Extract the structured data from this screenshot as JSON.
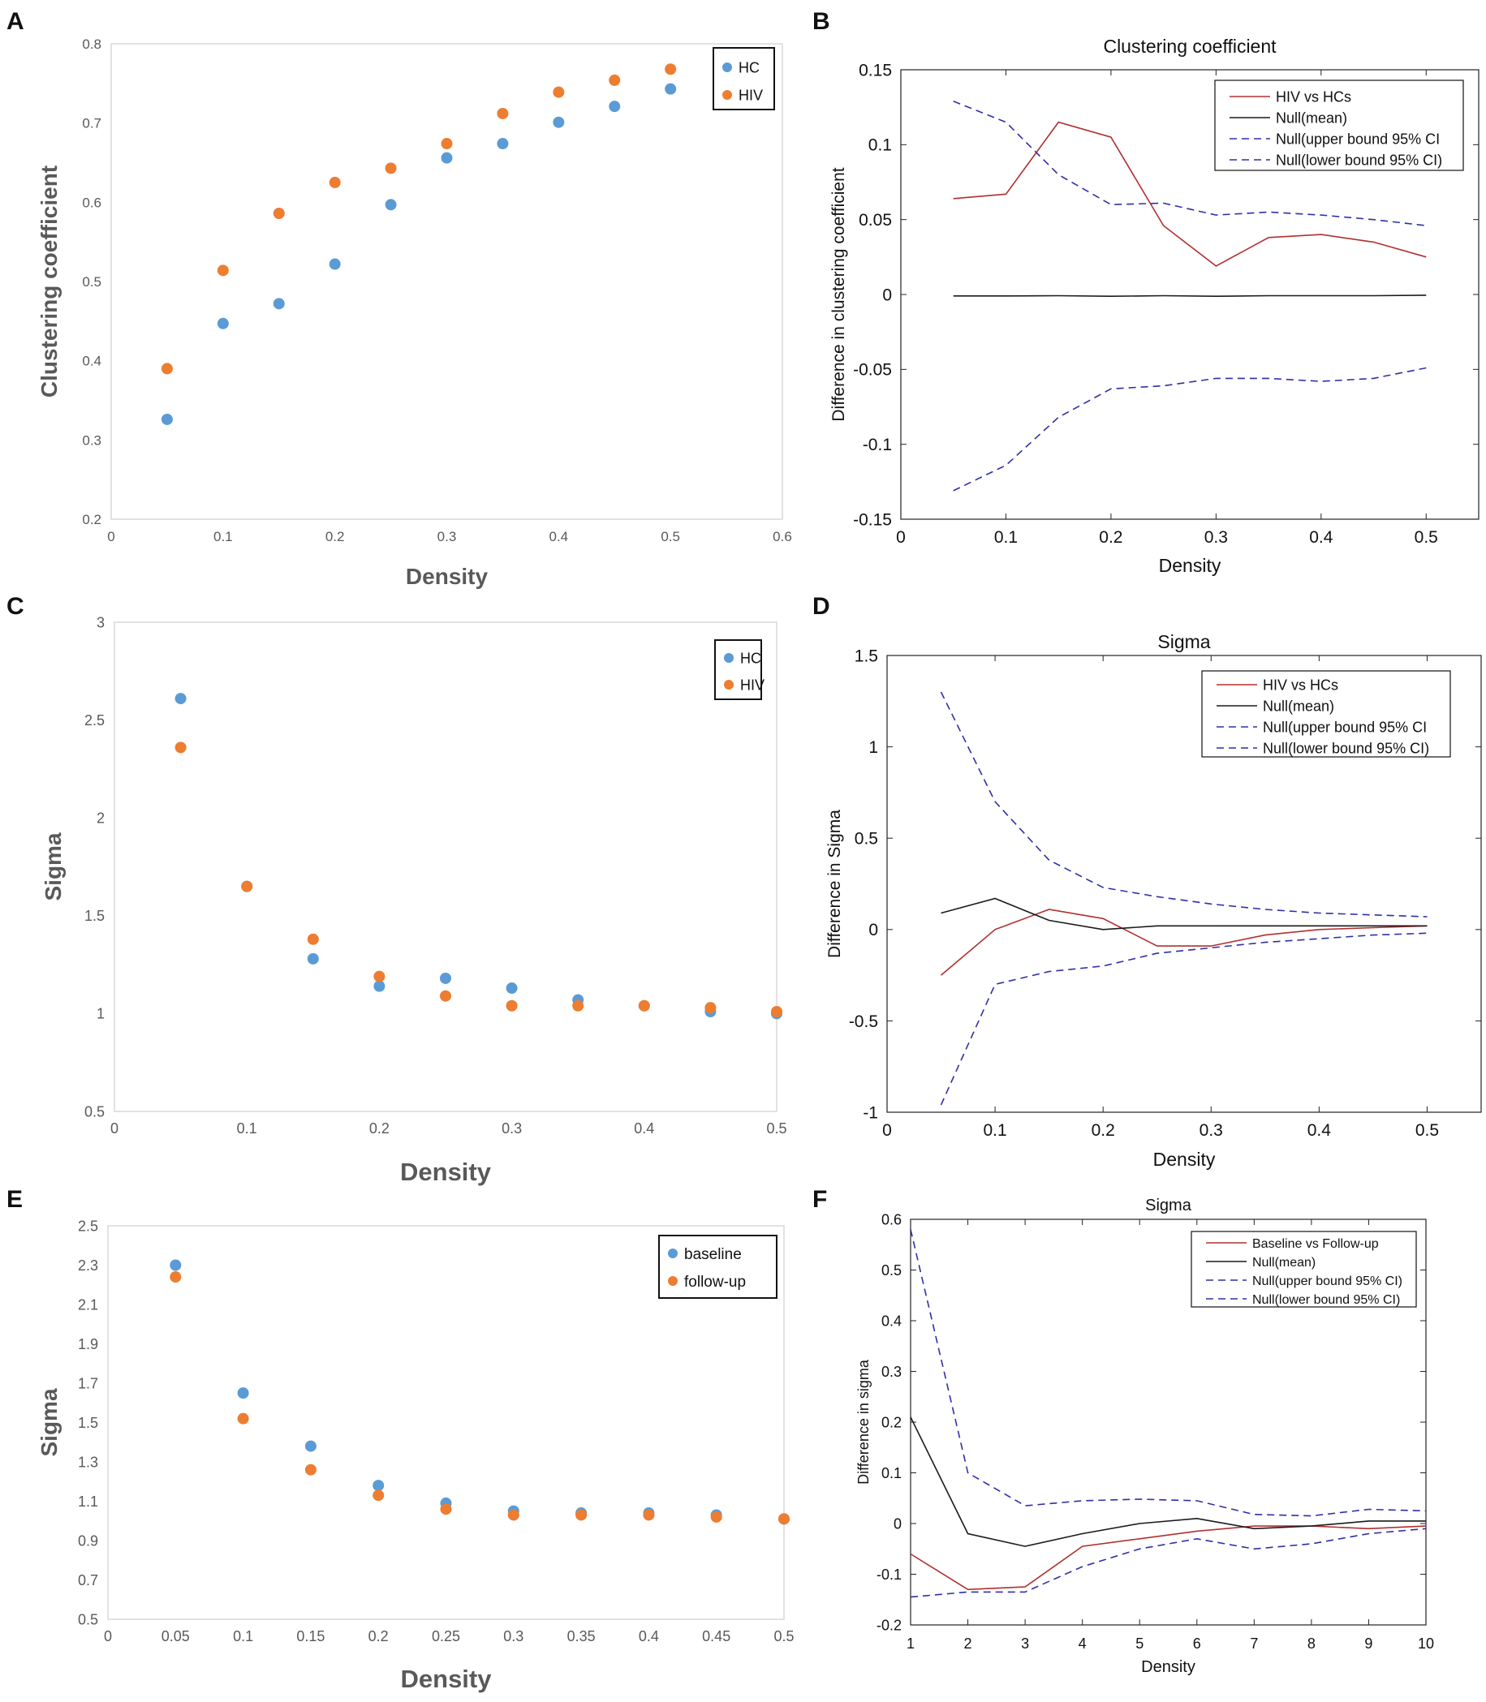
{
  "chart_data": [
    {
      "panel": "A",
      "type": "scatter",
      "title": "",
      "xlabel": "Density",
      "ylabel": "Clustering coefficient",
      "xlim": [
        0,
        0.6
      ],
      "ylim": [
        0.2,
        0.8
      ],
      "xticks": [
        0,
        0.1,
        0.2,
        0.3,
        0.4,
        0.5,
        0.6
      ],
      "xticklabels": [
        "0",
        "0.1",
        "0.2",
        "0.3",
        "0.4",
        "0.5",
        "0.6"
      ],
      "yticks": [
        0.2,
        0.3,
        0.4,
        0.5,
        0.6,
        0.7,
        0.8
      ],
      "yticklabels": [
        "0.2",
        "0.3",
        "0.4",
        "0.5",
        "0.6",
        "0.7",
        "0.8"
      ],
      "legend": "top-right",
      "series": [
        {
          "name": "HC",
          "color": "#5b9bd5",
          "x": [
            0.05,
            0.1,
            0.15,
            0.2,
            0.25,
            0.3,
            0.35,
            0.4,
            0.45,
            0.5
          ],
          "y": [
            0.326,
            0.447,
            0.472,
            0.522,
            0.597,
            0.656,
            0.674,
            0.701,
            0.721,
            0.743
          ]
        },
        {
          "name": "HIV",
          "color": "#ed7d31",
          "x": [
            0.05,
            0.1,
            0.15,
            0.2,
            0.25,
            0.3,
            0.35,
            0.4,
            0.45,
            0.5
          ],
          "y": [
            0.39,
            0.514,
            0.586,
            0.625,
            0.643,
            0.674,
            0.712,
            0.739,
            0.754,
            0.768
          ]
        }
      ]
    },
    {
      "panel": "B",
      "type": "line",
      "title": "Clustering coefficient",
      "xlabel": "Density",
      "ylabel": "Difference in clustering coefficient",
      "xlim": [
        0,
        0.55
      ],
      "ylim": [
        -0.15,
        0.15
      ],
      "xticks": [
        0,
        0.1,
        0.2,
        0.3,
        0.4,
        0.5
      ],
      "xticklabels": [
        "0",
        "0.1",
        "0.2",
        "0.3",
        "0.4",
        "0.5"
      ],
      "yticks": [
        -0.15,
        -0.1,
        -0.05,
        0,
        0.05,
        0.1,
        0.15
      ],
      "yticklabels": [
        "-0.15",
        "-0.1",
        "-0.05",
        "0",
        "0.05",
        "0.1",
        "0.15"
      ],
      "legend": "top-right",
      "series": [
        {
          "name": "HIV vs HCs",
          "color": "#b03030",
          "dash": false,
          "x": [
            0.05,
            0.1,
            0.15,
            0.2,
            0.25,
            0.3,
            0.35,
            0.4,
            0.45,
            0.5
          ],
          "y": [
            0.064,
            0.067,
            0.115,
            0.105,
            0.046,
            0.019,
            0.038,
            0.04,
            0.035,
            0.025
          ]
        },
        {
          "name": "Null(mean)",
          "color": "#1a1a1a",
          "dash": false,
          "x": [
            0.05,
            0.1,
            0.15,
            0.2,
            0.25,
            0.3,
            0.35,
            0.4,
            0.45,
            0.5
          ],
          "y": [
            -0.001,
            -0.001,
            -0.0008,
            -0.0012,
            -0.0008,
            -0.0012,
            -0.0008,
            -0.0008,
            -0.0008,
            -0.0005
          ]
        },
        {
          "name": "Null(upper bound 95% CI",
          "color": "#2f2fa8",
          "dash": true,
          "x": [
            0.05,
            0.1,
            0.15,
            0.2,
            0.25,
            0.3,
            0.35,
            0.4,
            0.45,
            0.5
          ],
          "y": [
            0.129,
            0.115,
            0.08,
            0.06,
            0.061,
            0.053,
            0.055,
            0.053,
            0.05,
            0.046
          ]
        },
        {
          "name": "Null(lower bound 95% CI)",
          "color": "#2f2fa8",
          "dash": true,
          "x": [
            0.05,
            0.1,
            0.15,
            0.2,
            0.25,
            0.3,
            0.35,
            0.4,
            0.45,
            0.5
          ],
          "y": [
            -0.131,
            -0.114,
            -0.082,
            -0.063,
            -0.061,
            -0.056,
            -0.056,
            -0.058,
            -0.056,
            -0.049
          ]
        }
      ]
    },
    {
      "panel": "C",
      "type": "scatter",
      "title": "",
      "xlabel": "Density",
      "ylabel": "Sigma",
      "xlim": [
        0,
        0.5
      ],
      "ylim": [
        0.5,
        3
      ],
      "xticks": [
        0,
        0.1,
        0.2,
        0.3,
        0.4,
        0.5
      ],
      "xticklabels": [
        "0",
        "0.1",
        "0.2",
        "0.3",
        "0.4",
        "0.5"
      ],
      "yticks": [
        0.5,
        1,
        1.5,
        2,
        2.5,
        3
      ],
      "yticklabels": [
        "0.5",
        "1",
        "1.5",
        "2",
        "2.5",
        "3"
      ],
      "legend": "top-right",
      "series": [
        {
          "name": "HC",
          "color": "#5b9bd5",
          "x": [
            0.05,
            0.1,
            0.15,
            0.2,
            0.25,
            0.3,
            0.35,
            0.4,
            0.45,
            0.5
          ],
          "y": [
            2.61,
            1.65,
            1.28,
            1.14,
            1.18,
            1.13,
            1.07,
            1.04,
            1.01,
            1.0
          ]
        },
        {
          "name": "HIV",
          "color": "#ed7d31",
          "x": [
            0.05,
            0.1,
            0.15,
            0.2,
            0.25,
            0.3,
            0.35,
            0.4,
            0.45,
            0.5
          ],
          "y": [
            2.36,
            1.65,
            1.38,
            1.19,
            1.09,
            1.04,
            1.04,
            1.04,
            1.03,
            1.01
          ]
        }
      ]
    },
    {
      "panel": "D",
      "type": "line",
      "title": "Sigma",
      "xlabel": "Density",
      "ylabel": "Difference in Sigma",
      "xlim": [
        0,
        0.55
      ],
      "ylim": [
        -1,
        1.5
      ],
      "xticks": [
        0,
        0.1,
        0.2,
        0.3,
        0.4,
        0.5
      ],
      "xticklabels": [
        "0",
        "0.1",
        "0.2",
        "0.3",
        "0.4",
        "0.5"
      ],
      "yticks": [
        -1,
        -0.5,
        0,
        0.5,
        1,
        1.5
      ],
      "yticklabels": [
        "-1",
        "-0.5",
        "0",
        "0.5",
        "1",
        "1.5"
      ],
      "legend": "top-right",
      "series": [
        {
          "name": "HIV vs HCs",
          "color": "#b03030",
          "dash": false,
          "x": [
            0.05,
            0.1,
            0.15,
            0.2,
            0.25,
            0.3,
            0.35,
            0.4,
            0.45,
            0.5
          ],
          "y": [
            -0.25,
            0.0,
            0.11,
            0.06,
            -0.09,
            -0.09,
            -0.03,
            0.0,
            0.01,
            0.02
          ]
        },
        {
          "name": "Null(mean)",
          "color": "#1a1a1a",
          "dash": false,
          "x": [
            0.05,
            0.1,
            0.15,
            0.2,
            0.25,
            0.3,
            0.35,
            0.4,
            0.45,
            0.5
          ],
          "y": [
            0.09,
            0.17,
            0.05,
            0.0,
            0.02,
            0.02,
            0.02,
            0.02,
            0.02,
            0.02
          ]
        },
        {
          "name": "Null(upper bound 95% CI",
          "color": "#2f2fa8",
          "dash": true,
          "x": [
            0.05,
            0.1,
            0.15,
            0.2,
            0.25,
            0.3,
            0.35,
            0.4,
            0.45,
            0.5
          ],
          "y": [
            1.3,
            0.7,
            0.38,
            0.23,
            0.18,
            0.14,
            0.11,
            0.09,
            0.08,
            0.07
          ]
        },
        {
          "name": "Null(lower bound 95% CI)",
          "color": "#2f2fa8",
          "dash": true,
          "x": [
            0.05,
            0.1,
            0.15,
            0.2,
            0.25,
            0.3,
            0.35,
            0.4,
            0.45,
            0.5
          ],
          "y": [
            -0.96,
            -0.3,
            -0.23,
            -0.2,
            -0.13,
            -0.1,
            -0.07,
            -0.05,
            -0.03,
            -0.02
          ]
        }
      ]
    },
    {
      "panel": "E",
      "type": "scatter",
      "title": "",
      "xlabel": "Density",
      "ylabel": "Sigma",
      "xlim": [
        0,
        0.5
      ],
      "ylim": [
        0.5,
        2.5
      ],
      "xticks": [
        0,
        0.05,
        0.1,
        0.15,
        0.2,
        0.25,
        0.3,
        0.35,
        0.4,
        0.45,
        0.5
      ],
      "xticklabels": [
        "0",
        "0.05",
        "0.1",
        "0.15",
        "0.2",
        "0.25",
        "0.3",
        "0.35",
        "0.4",
        "0.45",
        "0.5"
      ],
      "yticks": [
        0.5,
        0.7,
        0.9,
        1.1,
        1.3,
        1.5,
        1.7,
        1.9,
        2.1,
        2.3,
        2.5
      ],
      "yticklabels": [
        "0.5",
        "0.7",
        "0.9",
        "1.1",
        "1.3",
        "1.5",
        "1.7",
        "1.9",
        "2.1",
        "2.3",
        "2.5"
      ],
      "legend": "top-right",
      "series": [
        {
          "name": "baseline",
          "color": "#5b9bd5",
          "x": [
            0.05,
            0.1,
            0.15,
            0.2,
            0.25,
            0.3,
            0.35,
            0.4,
            0.45,
            0.5
          ],
          "y": [
            2.3,
            1.65,
            1.38,
            1.18,
            1.09,
            1.05,
            1.04,
            1.04,
            1.03,
            1.01
          ]
        },
        {
          "name": "follow-up",
          "color": "#ed7d31",
          "x": [
            0.05,
            0.1,
            0.15,
            0.2,
            0.25,
            0.3,
            0.35,
            0.4,
            0.45,
            0.5
          ],
          "y": [
            2.24,
            1.52,
            1.26,
            1.13,
            1.06,
            1.03,
            1.03,
            1.03,
            1.02,
            1.01
          ]
        }
      ]
    },
    {
      "panel": "F",
      "type": "line",
      "title": "Sigma",
      "xlabel": "Density",
      "ylabel": "Difference in sigma",
      "xlim": [
        1,
        10
      ],
      "ylim": [
        -0.2,
        0.6
      ],
      "xticks": [
        1,
        2,
        3,
        4,
        5,
        6,
        7,
        8,
        9,
        10
      ],
      "xticklabels": [
        "1",
        "2",
        "3",
        "4",
        "5",
        "6",
        "7",
        "8",
        "9",
        "10"
      ],
      "yticks": [
        -0.2,
        -0.1,
        0,
        0.1,
        0.2,
        0.3,
        0.4,
        0.5,
        0.6
      ],
      "yticklabels": [
        "-0.2",
        "-0.1",
        "0",
        "0.1",
        "0.2",
        "0.3",
        "0.4",
        "0.5",
        "0.6"
      ],
      "legend": "top-right",
      "series": [
        {
          "name": "Baseline vs Follow-up",
          "color": "#b03030",
          "dash": false,
          "x": [
            1,
            2,
            3,
            4,
            5,
            6,
            7,
            8,
            9,
            10
          ],
          "y": [
            -0.06,
            -0.13,
            -0.125,
            -0.045,
            -0.03,
            -0.015,
            -0.005,
            -0.005,
            -0.01,
            -0.005
          ]
        },
        {
          "name": "Null(mean)",
          "color": "#1a1a1a",
          "dash": false,
          "x": [
            1,
            2,
            3,
            4,
            5,
            6,
            7,
            8,
            9,
            10
          ],
          "y": [
            0.21,
            -0.02,
            -0.045,
            -0.02,
            0.0,
            0.01,
            -0.01,
            -0.005,
            0.005,
            0.005
          ]
        },
        {
          "name": "Null(upper bound 95% CI)",
          "color": "#2f2fa8",
          "dash": true,
          "x": [
            1,
            2,
            3,
            4,
            5,
            6,
            7,
            8,
            9,
            10
          ],
          "y": [
            0.58,
            0.1,
            0.035,
            0.045,
            0.048,
            0.045,
            0.018,
            0.015,
            0.028,
            0.025
          ]
        },
        {
          "name": "Null(lower bound 95% CI)",
          "color": "#2f2fa8",
          "dash": true,
          "x": [
            1,
            2,
            3,
            4,
            5,
            6,
            7,
            8,
            9,
            10
          ],
          "y": [
            -0.145,
            -0.135,
            -0.135,
            -0.085,
            -0.05,
            -0.03,
            -0.05,
            -0.04,
            -0.02,
            -0.01
          ]
        }
      ]
    }
  ]
}
